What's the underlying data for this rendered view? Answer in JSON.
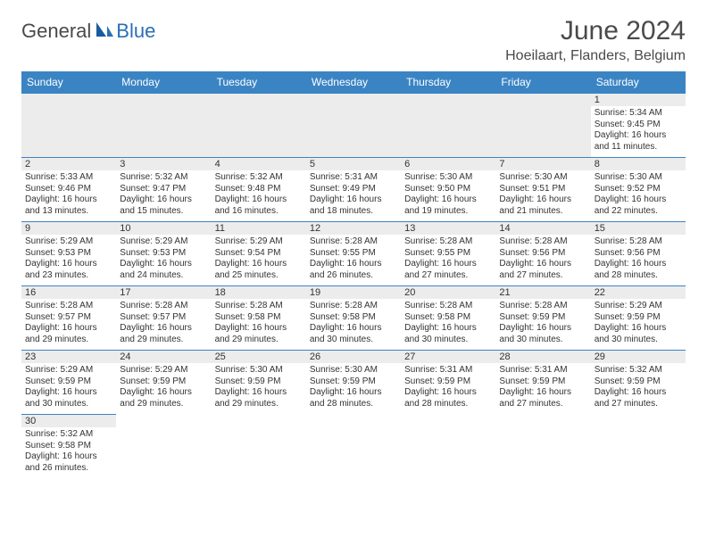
{
  "logo": {
    "part1": "General",
    "part2": "Blue"
  },
  "title": "June 2024",
  "location": "Hoeilaart, Flanders, Belgium",
  "colors": {
    "header_bg": "#3b84c4",
    "header_text": "#ffffff",
    "border": "#3b84c4",
    "daynum_bg": "#ececec",
    "logo_gray": "#4a4a4a",
    "logo_blue": "#2a6fb5"
  },
  "dayHeaders": [
    "Sunday",
    "Monday",
    "Tuesday",
    "Wednesday",
    "Thursday",
    "Friday",
    "Saturday"
  ],
  "weeks": [
    [
      null,
      null,
      null,
      null,
      null,
      null,
      {
        "n": "1",
        "sr": "5:34 AM",
        "ss": "9:45 PM",
        "dl": "16 hours and 11 minutes."
      }
    ],
    [
      {
        "n": "2",
        "sr": "5:33 AM",
        "ss": "9:46 PM",
        "dl": "16 hours and 13 minutes."
      },
      {
        "n": "3",
        "sr": "5:32 AM",
        "ss": "9:47 PM",
        "dl": "16 hours and 15 minutes."
      },
      {
        "n": "4",
        "sr": "5:32 AM",
        "ss": "9:48 PM",
        "dl": "16 hours and 16 minutes."
      },
      {
        "n": "5",
        "sr": "5:31 AM",
        "ss": "9:49 PM",
        "dl": "16 hours and 18 minutes."
      },
      {
        "n": "6",
        "sr": "5:30 AM",
        "ss": "9:50 PM",
        "dl": "16 hours and 19 minutes."
      },
      {
        "n": "7",
        "sr": "5:30 AM",
        "ss": "9:51 PM",
        "dl": "16 hours and 21 minutes."
      },
      {
        "n": "8",
        "sr": "5:30 AM",
        "ss": "9:52 PM",
        "dl": "16 hours and 22 minutes."
      }
    ],
    [
      {
        "n": "9",
        "sr": "5:29 AM",
        "ss": "9:53 PM",
        "dl": "16 hours and 23 minutes."
      },
      {
        "n": "10",
        "sr": "5:29 AM",
        "ss": "9:53 PM",
        "dl": "16 hours and 24 minutes."
      },
      {
        "n": "11",
        "sr": "5:29 AM",
        "ss": "9:54 PM",
        "dl": "16 hours and 25 minutes."
      },
      {
        "n": "12",
        "sr": "5:28 AM",
        "ss": "9:55 PM",
        "dl": "16 hours and 26 minutes."
      },
      {
        "n": "13",
        "sr": "5:28 AM",
        "ss": "9:55 PM",
        "dl": "16 hours and 27 minutes."
      },
      {
        "n": "14",
        "sr": "5:28 AM",
        "ss": "9:56 PM",
        "dl": "16 hours and 27 minutes."
      },
      {
        "n": "15",
        "sr": "5:28 AM",
        "ss": "9:56 PM",
        "dl": "16 hours and 28 minutes."
      }
    ],
    [
      {
        "n": "16",
        "sr": "5:28 AM",
        "ss": "9:57 PM",
        "dl": "16 hours and 29 minutes."
      },
      {
        "n": "17",
        "sr": "5:28 AM",
        "ss": "9:57 PM",
        "dl": "16 hours and 29 minutes."
      },
      {
        "n": "18",
        "sr": "5:28 AM",
        "ss": "9:58 PM",
        "dl": "16 hours and 29 minutes."
      },
      {
        "n": "19",
        "sr": "5:28 AM",
        "ss": "9:58 PM",
        "dl": "16 hours and 30 minutes."
      },
      {
        "n": "20",
        "sr": "5:28 AM",
        "ss": "9:58 PM",
        "dl": "16 hours and 30 minutes."
      },
      {
        "n": "21",
        "sr": "5:28 AM",
        "ss": "9:59 PM",
        "dl": "16 hours and 30 minutes."
      },
      {
        "n": "22",
        "sr": "5:29 AM",
        "ss": "9:59 PM",
        "dl": "16 hours and 30 minutes."
      }
    ],
    [
      {
        "n": "23",
        "sr": "5:29 AM",
        "ss": "9:59 PM",
        "dl": "16 hours and 30 minutes."
      },
      {
        "n": "24",
        "sr": "5:29 AM",
        "ss": "9:59 PM",
        "dl": "16 hours and 29 minutes."
      },
      {
        "n": "25",
        "sr": "5:30 AM",
        "ss": "9:59 PM",
        "dl": "16 hours and 29 minutes."
      },
      {
        "n": "26",
        "sr": "5:30 AM",
        "ss": "9:59 PM",
        "dl": "16 hours and 28 minutes."
      },
      {
        "n": "27",
        "sr": "5:31 AM",
        "ss": "9:59 PM",
        "dl": "16 hours and 28 minutes."
      },
      {
        "n": "28",
        "sr": "5:31 AM",
        "ss": "9:59 PM",
        "dl": "16 hours and 27 minutes."
      },
      {
        "n": "29",
        "sr": "5:32 AM",
        "ss": "9:59 PM",
        "dl": "16 hours and 27 minutes."
      }
    ],
    [
      {
        "n": "30",
        "sr": "5:32 AM",
        "ss": "9:58 PM",
        "dl": "16 hours and 26 minutes."
      },
      null,
      null,
      null,
      null,
      null,
      null
    ]
  ],
  "labels": {
    "sunrise": "Sunrise:",
    "sunset": "Sunset:",
    "daylight": "Daylight:"
  }
}
